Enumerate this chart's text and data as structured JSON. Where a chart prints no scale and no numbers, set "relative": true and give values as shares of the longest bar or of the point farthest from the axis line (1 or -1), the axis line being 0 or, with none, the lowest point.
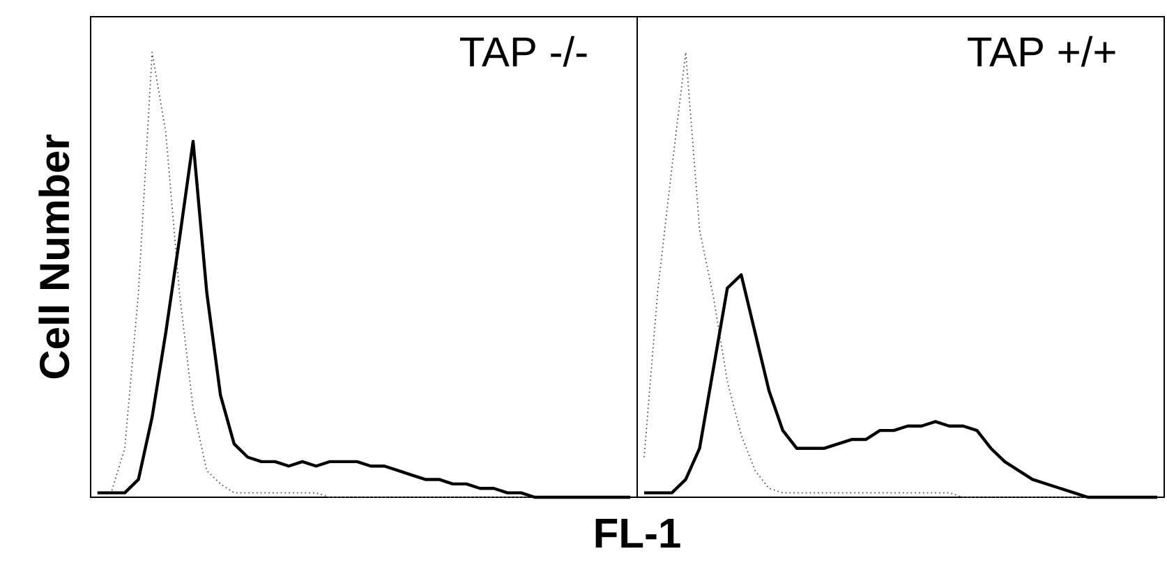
{
  "chart_data": [
    {
      "type": "line",
      "relative": true,
      "tick_labels": false,
      "ylabel": "Cell Number",
      "xlabel": "FL-1",
      "annotations": [
        "TAP -/-"
      ],
      "categories": [
        null,
        null,
        null,
        null,
        null,
        null,
        null,
        null,
        null,
        null,
        null,
        null,
        null,
        null,
        null,
        null,
        null,
        null,
        null,
        null,
        null,
        null,
        null,
        null,
        null,
        null,
        null,
        null,
        null,
        null,
        null,
        null,
        null,
        null,
        null,
        null,
        null,
        null,
        null,
        null
      ],
      "series": [
        {
          "color": "#555555",
          "line_style": "dotted",
          "values": [
            0.01,
            0.01,
            0.11,
            0.46,
            1.0,
            0.82,
            0.46,
            0.2,
            0.06,
            0.03,
            0.01,
            0.01,
            0.01,
            0.01,
            0.01,
            0.01,
            0.01,
            0,
            0,
            0,
            0,
            0,
            0,
            0,
            0,
            0,
            0,
            0,
            0,
            0,
            0,
            0,
            0,
            0,
            0,
            0,
            0,
            0,
            0,
            0
          ]
        },
        {
          "color": "#000000",
          "line_style": "solid",
          "values": [
            0.01,
            0.01,
            0.01,
            0.04,
            0.18,
            0.37,
            0.58,
            0.8,
            0.46,
            0.23,
            0.12,
            0.09,
            0.08,
            0.08,
            0.07,
            0.08,
            0.07,
            0.08,
            0.08,
            0.08,
            0.07,
            0.07,
            0.06,
            0.05,
            0.04,
            0.04,
            0.03,
            0.03,
            0.02,
            0.02,
            0.01,
            0.01,
            0,
            0,
            0,
            0,
            0,
            0,
            0,
            0
          ]
        }
      ]
    },
    {
      "type": "line",
      "relative": true,
      "tick_labels": false,
      "annotations": [
        "TAP +/+"
      ],
      "categories": [
        null,
        null,
        null,
        null,
        null,
        null,
        null,
        null,
        null,
        null,
        null,
        null,
        null,
        null,
        null,
        null,
        null,
        null,
        null,
        null,
        null,
        null,
        null,
        null,
        null,
        null,
        null,
        null,
        null,
        null,
        null,
        null,
        null,
        null,
        null,
        null,
        null,
        null
      ],
      "series": [
        {
          "color": "#555555",
          "line_style": "dotted",
          "values": [
            0.09,
            0.47,
            0.74,
            1.0,
            0.6,
            0.45,
            0.26,
            0.14,
            0.06,
            0.02,
            0.01,
            0.01,
            0.01,
            0.01,
            0.01,
            0.01,
            0.01,
            0.01,
            0.01,
            0.01,
            0.01,
            0.01,
            0.01,
            0,
            0,
            0,
            0,
            0,
            0,
            0,
            0,
            0,
            0,
            0,
            0,
            0,
            0,
            0
          ]
        },
        {
          "color": "#000000",
          "line_style": "solid",
          "values": [
            0.01,
            0.01,
            0.01,
            0.04,
            0.11,
            0.29,
            0.47,
            0.5,
            0.37,
            0.24,
            0.15,
            0.11,
            0.11,
            0.11,
            0.12,
            0.13,
            0.13,
            0.15,
            0.15,
            0.16,
            0.16,
            0.17,
            0.16,
            0.16,
            0.15,
            0.11,
            0.08,
            0.06,
            0.04,
            0.03,
            0.02,
            0.01,
            0,
            0,
            0,
            0,
            0,
            0
          ]
        }
      ]
    }
  ]
}
